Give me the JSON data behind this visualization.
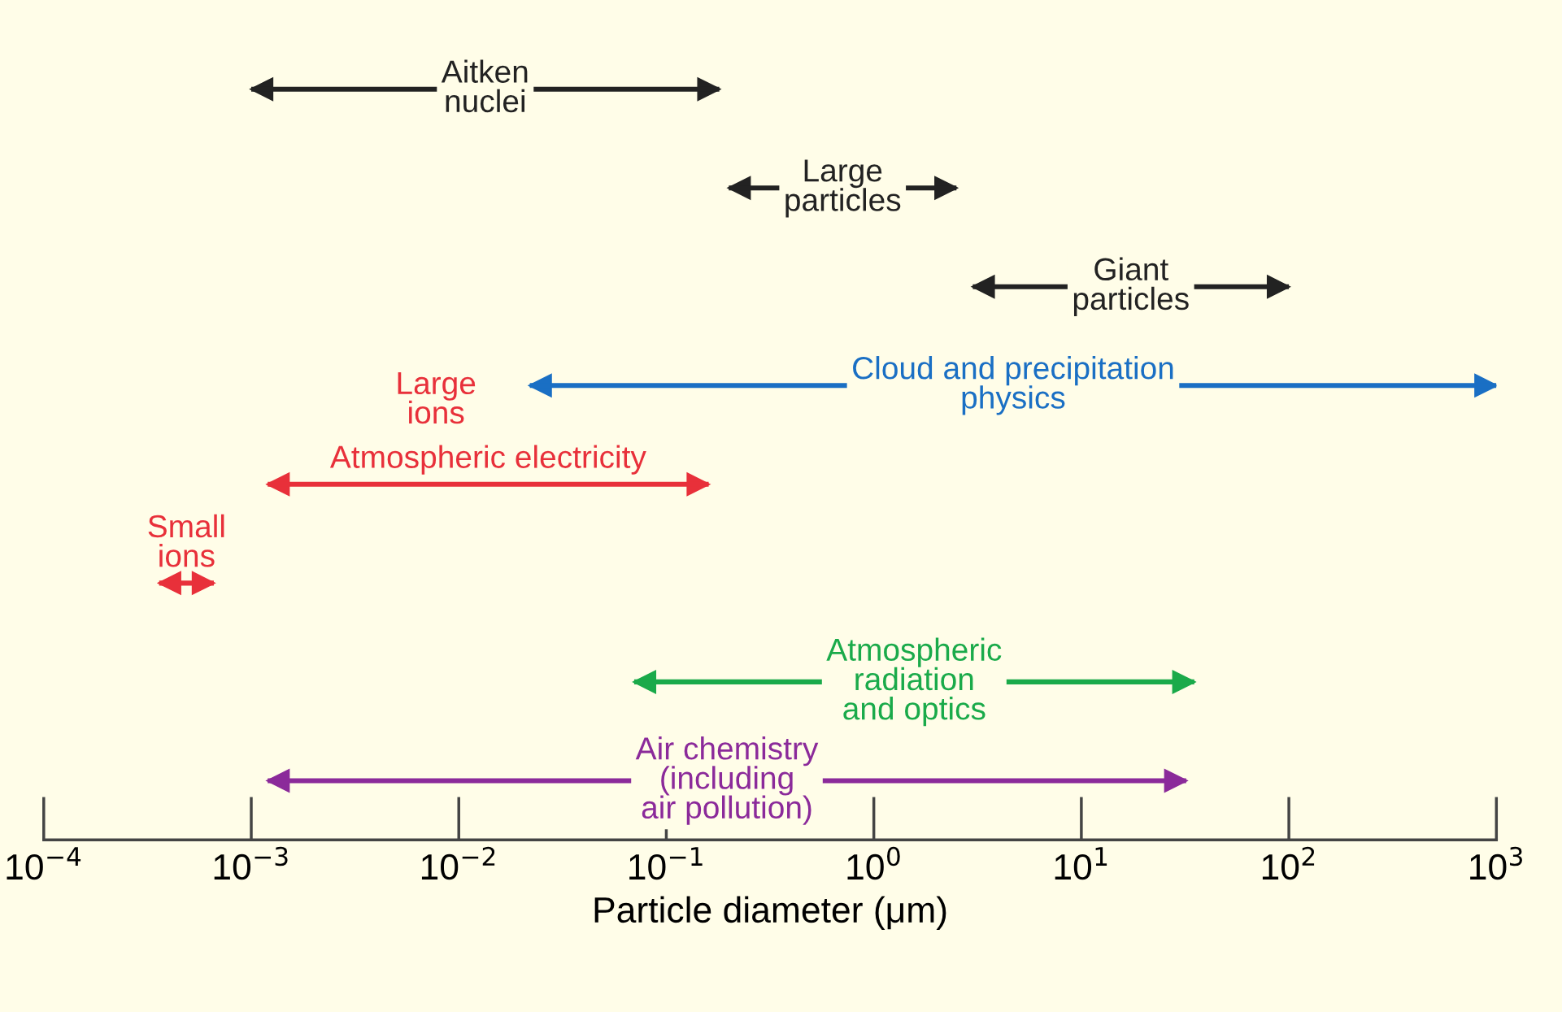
{
  "chart_data": {
    "type": "bar",
    "orientation": "horizontal",
    "log": "x",
    "xlabel": "Particle diameter (μm)",
    "tick_labels": "x",
    "grid": false,
    "categories": [
      "Aitken\nnuclei",
      "Large\nparticles",
      "Giant\nparticles",
      "Cloud and precipitation\nphysics",
      "Atmospheric electricity",
      "Small\nions",
      "Atmospheric\nradiation\nand optics",
      "Air chemistry\n(including\nair pollution)"
    ],
    "base": [
      0.001,
      0.2,
      3,
      0.022,
      0.0012,
      0.00036,
      0.07,
      0.0012
    ],
    "values": [
      0.179,
      2.3,
      97,
      999.978,
      0.1588,
      0.0003,
      34.93,
      31.9988
    ],
    "colors": [
      "#222222",
      "#222222",
      "#222222",
      "#1a6fc4",
      "#e8303a",
      "#e8303a",
      "#1aaa4a",
      "#8b2a9a"
    ],
    "xlim": [
      0.0001,
      1000
    ],
    "xticks": [
      {
        "value": 0.0001,
        "label": "10$^{−4}$"
      },
      {
        "value": 0.001,
        "label": "10$^{−3}$"
      },
      {
        "value": 0.01,
        "label": "10$^{−2}$"
      },
      {
        "value": 0.1,
        "label": "10$^{−1}$"
      },
      {
        "value": 1,
        "label": "10$^{0}$"
      },
      {
        "value": 10,
        "label": "10$^{1}$"
      },
      {
        "value": 100,
        "label": "10$^{2}$"
      },
      {
        "value": 1000,
        "label": "10$^{3}$"
      }
    ],
    "annotations": [
      "Large\nions"
    ]
  }
}
